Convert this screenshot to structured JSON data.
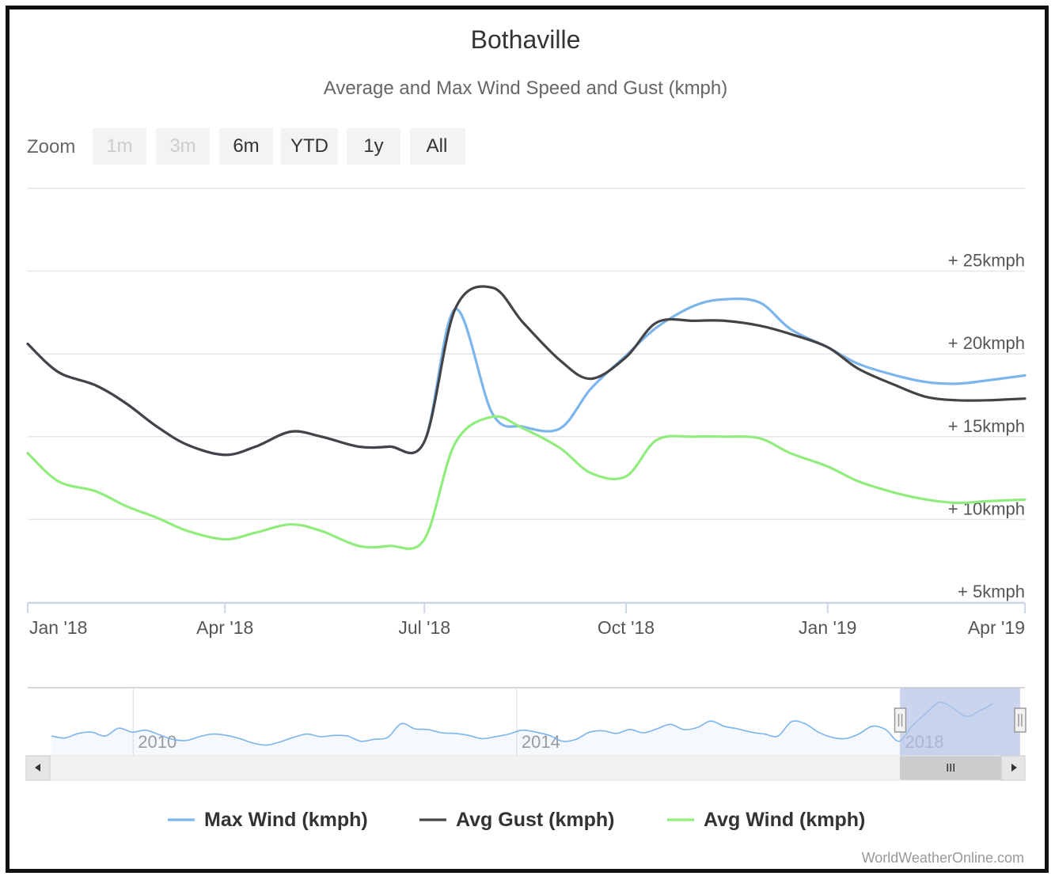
{
  "chart_data": {
    "type": "line",
    "title": "Bothaville",
    "subtitle": "Average and Max Wind Speed and Gust (kmph)",
    "x": [
      "2018-01-01",
      "2018-01-15",
      "2018-02-01",
      "2018-02-15",
      "2018-03-01",
      "2018-03-15",
      "2018-04-01",
      "2018-04-15",
      "2018-05-01",
      "2018-05-15",
      "2018-06-01",
      "2018-06-15",
      "2018-07-01",
      "2018-07-15",
      "2018-08-01",
      "2018-08-15",
      "2018-09-01",
      "2018-09-15",
      "2018-10-01",
      "2018-10-15",
      "2018-11-01",
      "2018-11-15",
      "2018-12-01",
      "2018-12-15",
      "2019-01-01",
      "2019-01-15",
      "2019-02-01",
      "2019-02-15",
      "2019-03-01",
      "2019-03-15",
      "2019-04-01"
    ],
    "series": [
      {
        "name": "Max Wind (kmph)",
        "color": "#7cb5ec",
        "values": [
          20.6,
          18.9,
          18.1,
          17.0,
          15.6,
          14.5,
          13.9,
          14.4,
          15.3,
          15.0,
          14.4,
          14.4,
          14.7,
          22.7,
          16.4,
          15.6,
          15.5,
          17.9,
          19.9,
          21.6,
          22.9,
          23.3,
          23.1,
          21.5,
          20.4,
          19.4,
          18.7,
          18.3,
          18.2,
          18.4,
          18.7
        ]
      },
      {
        "name": "Avg Gust (kmph)",
        "color": "#434348",
        "values": [
          20.6,
          18.9,
          18.1,
          17.0,
          15.6,
          14.5,
          13.9,
          14.4,
          15.3,
          15.0,
          14.4,
          14.4,
          14.7,
          22.7,
          24.0,
          21.9,
          19.6,
          18.5,
          19.8,
          21.9,
          22.0,
          22.0,
          21.7,
          21.2,
          20.4,
          19.1,
          18.1,
          17.4,
          17.2,
          17.2,
          17.3
        ]
      },
      {
        "name": "Avg Wind (kmph)",
        "color": "#90ed7d",
        "values": [
          14.0,
          12.3,
          11.7,
          10.8,
          10.1,
          9.3,
          8.8,
          9.2,
          9.7,
          9.3,
          8.4,
          8.4,
          8.8,
          14.6,
          16.2,
          15.5,
          14.3,
          12.8,
          12.6,
          14.8,
          15.0,
          15.0,
          14.9,
          14.0,
          13.2,
          12.3,
          11.6,
          11.2,
          11.0,
          11.1,
          11.2
        ]
      }
    ],
    "y_ticks": [
      "+ 25kmph",
      "+ 20kmph",
      "+ 15kmph",
      "+ 10kmph",
      "+ 5kmph"
    ],
    "ylim": [
      5,
      30
    ],
    "x_tick_labels": [
      "Jan '18",
      "Apr '18",
      "Jul '18",
      "Oct '18",
      "Jan '19",
      "Apr '19"
    ],
    "legend_position": "bottom-center",
    "grid": true,
    "navigator": {
      "year_labels": [
        "2010",
        "2014",
        "2018"
      ],
      "range_years": [
        2008.9,
        2019.3
      ],
      "selected_years": [
        2018.0,
        2019.25
      ],
      "values": [
        18.3,
        18.0,
        18.7,
        18.9,
        18.3,
        19.5,
        18.9,
        19.2,
        18.5,
        17.8,
        17.6,
        18.2,
        18.6,
        18.4,
        17.9,
        17.2,
        16.9,
        17.4,
        18.1,
        18.6,
        18.2,
        18.4,
        18.3,
        17.5,
        17.8,
        18.1,
        20.2,
        19.4,
        19.3,
        18.8,
        18.7,
        18.4,
        17.9,
        18.2,
        18.6,
        19.2,
        18.9,
        18.4,
        17.5,
        17.8,
        18.9,
        19.1,
        18.7,
        19.3,
        18.8,
        19.4,
        20.1,
        19.3,
        19.6,
        20.6,
        19.8,
        19.4,
        18.9,
        18.6,
        18.3,
        20.5,
        20.2,
        18.9,
        18.1,
        17.9,
        18.6,
        19.8,
        19.3,
        17.5,
        19.9,
        21.8,
        23.5,
        22.6,
        21.3,
        22.2,
        23.3
      ]
    }
  },
  "zoom": {
    "label": "Zoom",
    "buttons": [
      "1m",
      "3m",
      "6m",
      "YTD",
      "1y",
      "All"
    ]
  },
  "credits": "WorldWeatherOnline.com",
  "colors": {
    "max_wind": "#7cb5ec",
    "avg_gust": "#434348",
    "avg_wind": "#90ed7d",
    "navigator_line": "#7cb5ec",
    "navigator_mask": "#b4c3e6"
  }
}
